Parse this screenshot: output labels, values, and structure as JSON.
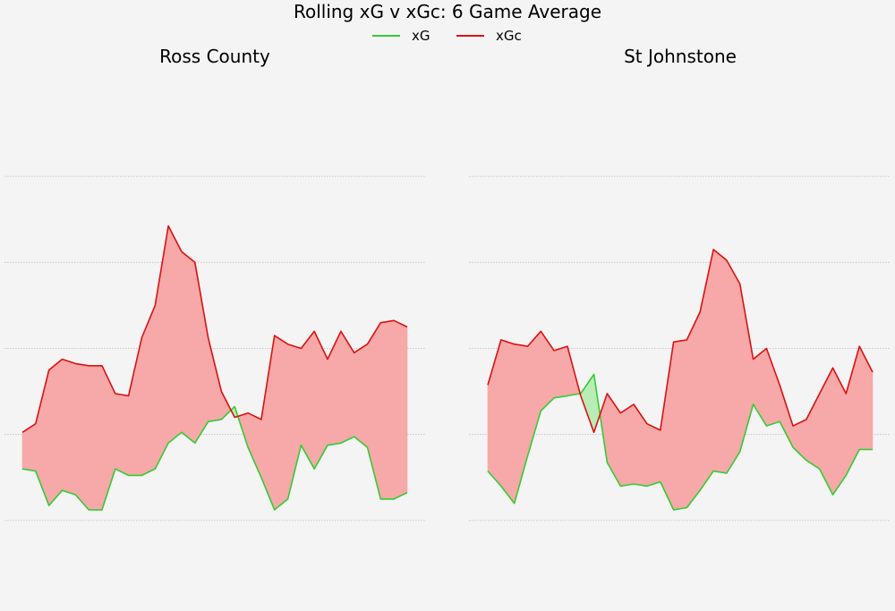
{
  "title": "Rolling xG v xGc: 6 Game Average",
  "legend": {
    "placement": "top-center",
    "items": [
      {
        "label": "xG",
        "color": "#33cc33"
      },
      {
        "label": "xGc",
        "color": "#dd1111"
      }
    ]
  },
  "colors": {
    "xg": "#33cc33",
    "xgc": "#dd1111",
    "fill_xgc_above": "#f7a8a8",
    "fill_xg_above": "#b9ecb6",
    "grid": "#bbbbbb",
    "background": "#f4f4f4"
  },
  "chart_data": [
    {
      "type": "area",
      "title": "Ross County",
      "ylim": [
        0.6,
        2.7
      ],
      "grid": true,
      "gridlines": [
        0.8,
        1.2,
        1.6,
        2.0,
        2.4
      ],
      "xlim": [
        1,
        30
      ],
      "x": [
        1,
        2,
        3,
        4,
        5,
        6,
        7,
        8,
        9,
        10,
        11,
        12,
        13,
        14,
        15,
        16,
        17,
        18,
        19,
        20,
        21,
        22,
        23,
        24,
        25,
        26,
        27,
        28,
        29,
        30
      ],
      "series": [
        {
          "name": "xG",
          "values": [
            1.04,
            1.03,
            0.87,
            0.94,
            0.92,
            0.85,
            0.85,
            1.04,
            1.01,
            1.01,
            1.04,
            1.16,
            1.21,
            1.16,
            1.26,
            1.27,
            1.33,
            1.14,
            1.0,
            0.85,
            0.9,
            1.15,
            1.04,
            1.15,
            1.16,
            1.19,
            1.14,
            0.9,
            0.9,
            0.93
          ]
        },
        {
          "name": "xGc",
          "values": [
            1.21,
            1.25,
            1.5,
            1.55,
            1.53,
            1.52,
            1.52,
            1.39,
            1.38,
            1.65,
            1.8,
            2.17,
            2.05,
            2.0,
            1.65,
            1.4,
            1.28,
            1.3,
            1.27,
            1.66,
            1.62,
            1.6,
            1.68,
            1.55,
            1.68,
            1.58,
            1.62,
            1.72,
            1.73,
            1.7
          ]
        }
      ]
    },
    {
      "type": "area",
      "title": "St Johnstone",
      "ylim": [
        0.6,
        2.7
      ],
      "grid": true,
      "gridlines": [
        0.8,
        1.2,
        1.6,
        2.0,
        2.4
      ],
      "xlim": [
        1,
        30
      ],
      "x": [
        1,
        2,
        3,
        4,
        5,
        6,
        7,
        8,
        9,
        10,
        11,
        12,
        13,
        14,
        15,
        16,
        17,
        18,
        19,
        20,
        21,
        22,
        23,
        24,
        25,
        26,
        27,
        28,
        29,
        30
      ],
      "series": [
        {
          "name": "xG",
          "values": [
            1.03,
            0.96,
            0.88,
            1.1,
            1.31,
            1.37,
            1.38,
            1.39,
            1.48,
            1.07,
            0.96,
            0.97,
            0.96,
            0.98,
            0.85,
            0.86,
            0.94,
            1.03,
            1.02,
            1.12,
            1.34,
            1.24,
            1.26,
            1.14,
            1.08,
            1.04,
            0.92,
            1.01,
            1.13,
            1.13
          ]
        },
        {
          "name": "xGc",
          "values": [
            1.43,
            1.64,
            1.62,
            1.61,
            1.68,
            1.59,
            1.61,
            1.38,
            1.21,
            1.39,
            1.3,
            1.34,
            1.25,
            1.22,
            1.63,
            1.64,
            1.77,
            2.06,
            2.01,
            1.9,
            1.55,
            1.6,
            1.43,
            1.24,
            1.27,
            1.39,
            1.51,
            1.39,
            1.61,
            1.49
          ]
        }
      ]
    }
  ]
}
